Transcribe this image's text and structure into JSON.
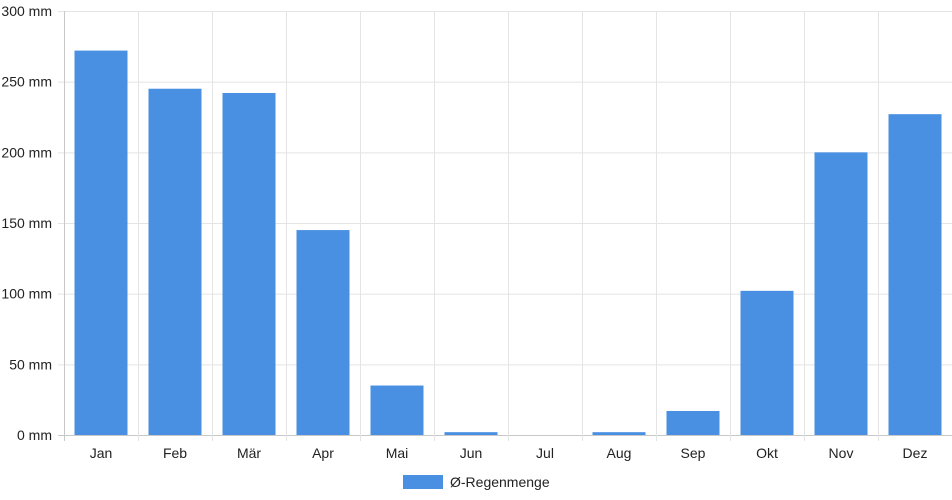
{
  "chart_data": {
    "type": "bar",
    "categories": [
      "Jan",
      "Feb",
      "Mär",
      "Apr",
      "Mai",
      "Jun",
      "Jul",
      "Aug",
      "Sep",
      "Okt",
      "Nov",
      "Dez"
    ],
    "series": [
      {
        "name": "Ø-Regenmenge",
        "values": [
          272,
          245,
          242,
          145,
          35,
          2,
          0,
          2,
          17,
          102,
          200,
          227
        ],
        "color": "#4A90E2"
      }
    ],
    "ylim": [
      0,
      300
    ],
    "yticks": [
      0,
      50,
      100,
      150,
      200,
      250,
      300
    ],
    "ytick_suffix": " mm",
    "grid": true,
    "legend_position": "bottom"
  }
}
